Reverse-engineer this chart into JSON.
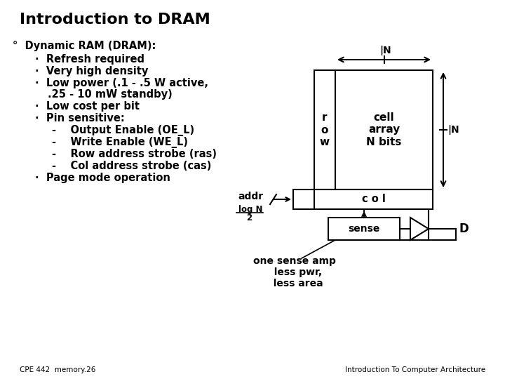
{
  "title": "Introduction to DRAM",
  "background_color": "#ffffff",
  "text_color": "#000000",
  "title_fontsize": 16,
  "body_fontsize": 10.5,
  "footer_left": "CPE 442  memory.26",
  "footer_right": "Introduction To Computer Architecture",
  "footer_fontsize": 7.5,
  "bullet_main": "°  Dynamic RAM (DRAM):",
  "diagram": {
    "cell_array_label": "cell\narray\nN bits",
    "row_label": "r\no\nw",
    "col_label": "c o l",
    "sense_label": "sense",
    "addr_label": "addr",
    "logN_line1": "log N",
    "logN_line2": "2",
    "D_label": "D",
    "one_sense_label": "one sense amp\n  less pwr,\n  less area",
    "N_label": "|N"
  }
}
